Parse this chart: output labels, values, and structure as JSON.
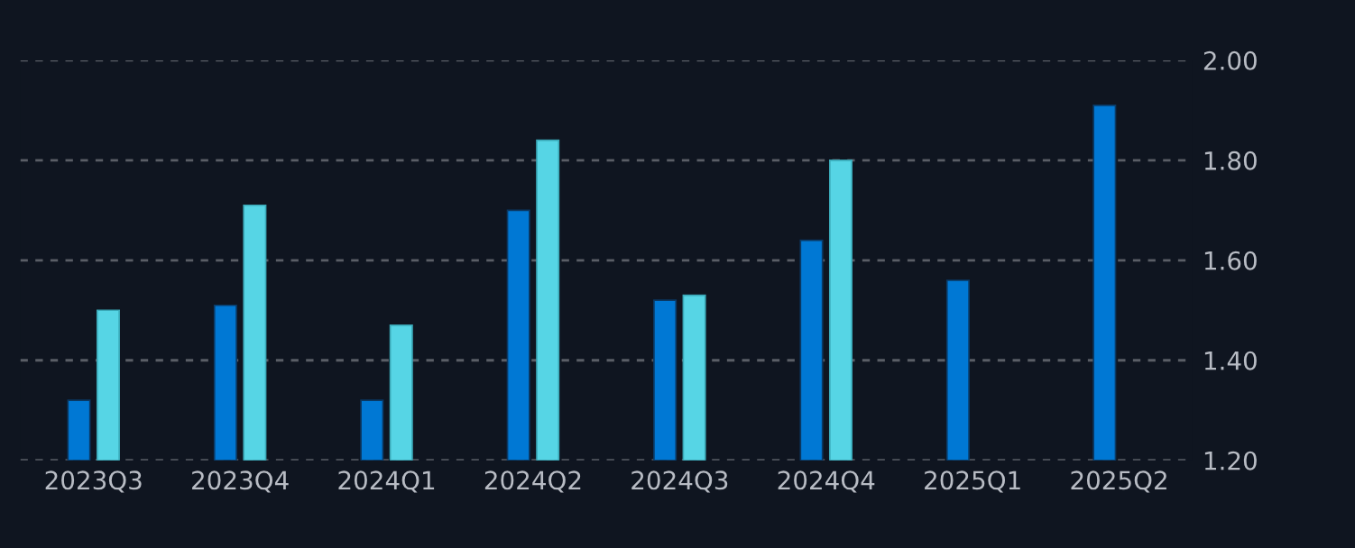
{
  "chart_data": {
    "type": "bar",
    "categories": [
      "2023Q3",
      "2023Q4",
      "2024Q1",
      "2024Q2",
      "2024Q3",
      "2024Q4",
      "2025Q1",
      "2025Q2"
    ],
    "series": [
      {
        "color": "#0078d4",
        "values": [
          1.32,
          1.51,
          1.32,
          1.7,
          1.52,
          1.64,
          1.56,
          1.91
        ]
      },
      {
        "color": "#56d5e5",
        "values": [
          1.5,
          1.71,
          1.47,
          1.84,
          1.53,
          1.8,
          null,
          null
        ]
      }
    ],
    "ylim": [
      1.2,
      2.0
    ],
    "yticks": [
      {
        "value": 1.2,
        "label": "1.20"
      },
      {
        "value": 1.4,
        "label": "1.40"
      },
      {
        "value": 1.6,
        "label": "1.60"
      },
      {
        "value": 1.8,
        "label": "1.80"
      },
      {
        "value": 2.0,
        "label": "2.00"
      }
    ],
    "grid": "y",
    "legend": false
  }
}
